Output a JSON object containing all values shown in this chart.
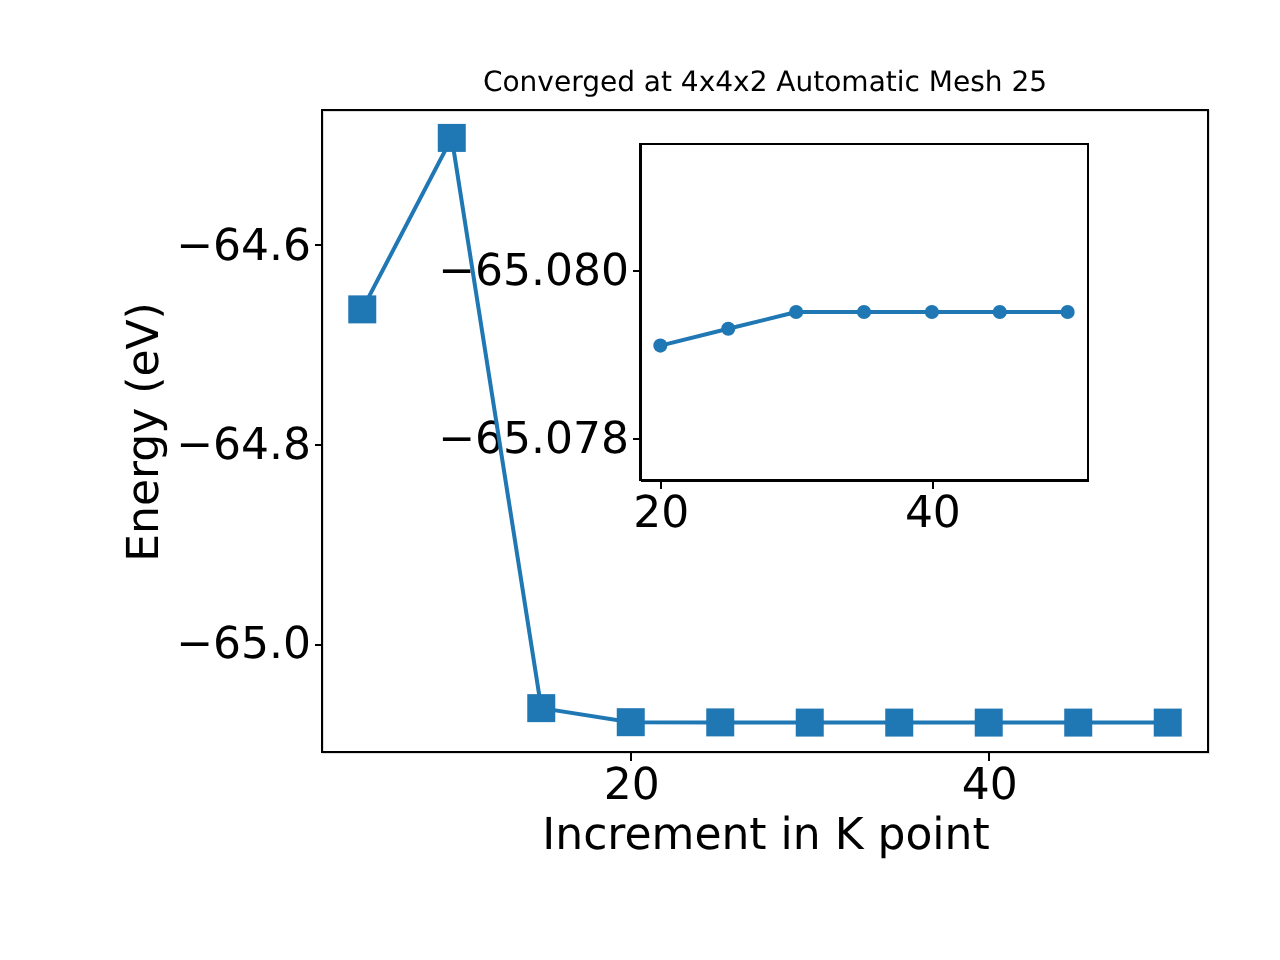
{
  "chart_data": [
    {
      "type": "line",
      "title": "Converged at 4x4x2 Automatic Mesh 25",
      "xlabel": "Increment in K point",
      "ylabel": "Energy (eV)",
      "x": [
        5,
        10,
        15,
        20,
        25,
        30,
        35,
        40,
        45,
        50
      ],
      "series": [
        {
          "color": "#1f77b4",
          "values": [
            -64.665,
            -64.493,
            -65.065,
            -65.0791,
            -65.0793,
            -65.0795,
            -65.0795,
            -65.0795,
            -65.0795,
            -65.0795
          ]
        }
      ],
      "marker": "square",
      "xlim": [
        2.75,
        52.25
      ],
      "ylim": [
        -65.109,
        -64.465
      ],
      "xticks": [
        20,
        40
      ],
      "yticks": [
        {
          "value": -65.0,
          "label": "−65.0"
        },
        {
          "value": -64.8,
          "label": "−64.8"
        },
        {
          "value": -64.6,
          "label": "−64.6"
        }
      ]
    },
    {
      "type": "line",
      "x": [
        20,
        25,
        30,
        35,
        40,
        45,
        50
      ],
      "series": [
        {
          "color": "#1f77b4",
          "values": [
            -65.0791,
            -65.0793,
            -65.0795,
            -65.0795,
            -65.0795,
            -65.0795,
            -65.0795
          ]
        }
      ],
      "marker": "circle",
      "xlim": [
        18.5,
        51.5
      ],
      "ylim": [
        -65.0775,
        -65.0815
      ],
      "xticks": [
        20,
        40
      ],
      "yticks": [
        {
          "value": -65.078,
          "label": "−65.078"
        },
        {
          "value": -65.08,
          "label": "−65.080"
        }
      ]
    }
  ]
}
